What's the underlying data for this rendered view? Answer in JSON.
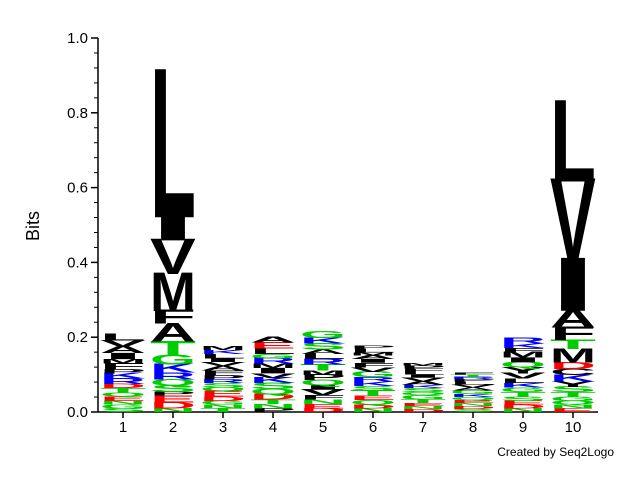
{
  "chart_data": {
    "type": "sequence-logo",
    "ylabel": "Bits",
    "ylim": [
      0,
      1.0
    ],
    "yticks": [
      "0.0",
      "0.2",
      "0.4",
      "0.6",
      "0.8",
      "1.0"
    ],
    "positions": [
      "1",
      "2",
      "3",
      "4",
      "5",
      "6",
      "7",
      "8",
      "9",
      "10"
    ],
    "credit": "Created by Seq2Logo",
    "colors": {
      "hydrophobic": "#000000",
      "polar": "#00cc00",
      "positive": "#0000ff",
      "negative": "#ff0000"
    },
    "residue_groups": {
      "A": "hydrophobic",
      "V": "hydrophobic",
      "L": "hydrophobic",
      "I": "hydrophobic",
      "M": "hydrophobic",
      "F": "hydrophobic",
      "W": "hydrophobic",
      "P": "hydrophobic",
      "Y": "hydrophobic",
      "C": "hydrophobic",
      "G": "polar",
      "S": "polar",
      "T": "polar",
      "N": "polar",
      "Q": "polar",
      "K": "positive",
      "R": "positive",
      "H": "positive",
      "D": "negative",
      "E": "negative"
    },
    "stacks": [
      {
        "position": "1",
        "letters": [
          [
            "S",
            0.01
          ],
          [
            "G",
            0.01
          ],
          [
            "N",
            0.01
          ],
          [
            "E",
            0.012
          ],
          [
            "Q",
            0.01
          ],
          [
            "T",
            0.012
          ],
          [
            "D",
            0.012
          ],
          [
            "R",
            0.014
          ],
          [
            "K",
            0.014
          ],
          [
            "P",
            0.012
          ],
          [
            "F",
            0.014
          ],
          [
            "M",
            0.012
          ],
          [
            "I",
            0.016
          ],
          [
            "A",
            0.018
          ],
          [
            "V",
            0.016
          ],
          [
            "L",
            0.018
          ]
        ]
      },
      {
        "position": "2",
        "letters": [
          [
            "N",
            0.01
          ],
          [
            "D",
            0.016
          ],
          [
            "E",
            0.018
          ],
          [
            "P",
            0.01
          ],
          [
            "S",
            0.018
          ],
          [
            "Q",
            0.016
          ],
          [
            "R",
            0.018
          ],
          [
            "K",
            0.022
          ],
          [
            "G",
            0.026
          ],
          [
            "T",
            0.036
          ],
          [
            "A",
            0.048
          ],
          [
            "F",
            0.036
          ],
          [
            "M",
            0.098
          ],
          [
            "V",
            0.09
          ],
          [
            "I",
            0.074
          ],
          [
            "L",
            0.38
          ]
        ]
      },
      {
        "position": "3",
        "letters": [
          [
            "T",
            0.01
          ],
          [
            "N",
            0.01
          ],
          [
            "G",
            0.01
          ],
          [
            "D",
            0.012
          ],
          [
            "E",
            0.014
          ],
          [
            "Q",
            0.01
          ],
          [
            "S",
            0.012
          ],
          [
            "R",
            0.01
          ],
          [
            "P",
            0.012
          ],
          [
            "F",
            0.012
          ],
          [
            "A",
            0.012
          ],
          [
            "V",
            0.01
          ],
          [
            "I",
            0.01
          ],
          [
            "L",
            0.012
          ],
          [
            "K",
            0.01
          ],
          [
            "M",
            0.01
          ]
        ]
      },
      {
        "position": "4",
        "letters": [
          [
            "P",
            0.01
          ],
          [
            "N",
            0.012
          ],
          [
            "T",
            0.012
          ],
          [
            "D",
            0.014
          ],
          [
            "Q",
            0.014
          ],
          [
            "S",
            0.016
          ],
          [
            "K",
            0.014
          ],
          [
            "V",
            0.012
          ],
          [
            "I",
            0.014
          ],
          [
            "M",
            0.012
          ],
          [
            "R",
            0.014
          ],
          [
            "G",
            0.012
          ],
          [
            "L",
            0.014
          ],
          [
            "E",
            0.016
          ],
          [
            "A",
            0.014
          ]
        ]
      },
      {
        "position": "5",
        "letters": [
          [
            "D",
            0.01
          ],
          [
            "E",
            0.012
          ],
          [
            "N",
            0.012
          ],
          [
            "F",
            0.012
          ],
          [
            "V",
            0.014
          ],
          [
            "I",
            0.012
          ],
          [
            "Q",
            0.014
          ],
          [
            "P",
            0.014
          ],
          [
            "M",
            0.012
          ],
          [
            "T",
            0.016
          ],
          [
            "R",
            0.014
          ],
          [
            "L",
            0.014
          ],
          [
            "A",
            0.012
          ],
          [
            "S",
            0.016
          ],
          [
            "K",
            0.014
          ],
          [
            "G",
            0.018
          ]
        ]
      },
      {
        "position": "6",
        "letters": [
          [
            "N",
            0.01
          ],
          [
            "D",
            0.01
          ],
          [
            "Q",
            0.012
          ],
          [
            "E",
            0.012
          ],
          [
            "T",
            0.014
          ],
          [
            "S",
            0.012
          ],
          [
            "K",
            0.012
          ],
          [
            "R",
            0.012
          ],
          [
            "G",
            0.014
          ],
          [
            "V",
            0.012
          ],
          [
            "F",
            0.012
          ],
          [
            "I",
            0.01
          ],
          [
            "A",
            0.01
          ],
          [
            "M",
            0.008
          ],
          [
            "L",
            0.01
          ],
          [
            "P",
            0.008
          ]
        ]
      },
      {
        "position": "7",
        "letters": [
          [
            "D",
            0.008
          ],
          [
            "N",
            0.008
          ],
          [
            "E",
            0.008
          ],
          [
            "T",
            0.01
          ],
          [
            "G",
            0.012
          ],
          [
            "Q",
            0.008
          ],
          [
            "S",
            0.01
          ],
          [
            "K",
            0.008
          ],
          [
            "A",
            0.01
          ],
          [
            "V",
            0.01
          ],
          [
            "I",
            0.008
          ],
          [
            "L",
            0.008
          ],
          [
            "F",
            0.008
          ],
          [
            "P",
            0.008
          ],
          [
            "M",
            0.006
          ]
        ]
      },
      {
        "position": "8",
        "letters": [
          [
            "S",
            0.008
          ],
          [
            "D",
            0.008
          ],
          [
            "N",
            0.008
          ],
          [
            "E",
            0.008
          ],
          [
            "Q",
            0.008
          ],
          [
            "K",
            0.008
          ],
          [
            "G",
            0.01
          ],
          [
            "A",
            0.008
          ],
          [
            "V",
            0.008
          ],
          [
            "L",
            0.008
          ],
          [
            "P",
            0.006
          ],
          [
            "R",
            0.006
          ],
          [
            "T",
            0.006
          ],
          [
            "F",
            0.004
          ]
        ]
      },
      {
        "position": "9",
        "letters": [
          [
            "N",
            0.01
          ],
          [
            "D",
            0.01
          ],
          [
            "E",
            0.01
          ],
          [
            "S",
            0.012
          ],
          [
            "T",
            0.012
          ],
          [
            "G",
            0.012
          ],
          [
            "K",
            0.012
          ],
          [
            "L",
            0.012
          ],
          [
            "V",
            0.014
          ],
          [
            "Y",
            0.016
          ],
          [
            "Q",
            0.014
          ],
          [
            "I",
            0.012
          ],
          [
            "M",
            0.014
          ],
          [
            "F",
            0.012
          ],
          [
            "K",
            0.012
          ],
          [
            "R",
            0.014
          ]
        ]
      },
      {
        "position": "10",
        "letters": [
          [
            "E",
            0.01
          ],
          [
            "N",
            0.01
          ],
          [
            "Q",
            0.01
          ],
          [
            "G",
            0.012
          ],
          [
            "T",
            0.012
          ],
          [
            "S",
            0.014
          ],
          [
            "Y",
            0.014
          ],
          [
            "K",
            0.018
          ],
          [
            "C",
            0.016
          ],
          [
            "D",
            0.018
          ],
          [
            "M",
            0.036
          ],
          [
            "T",
            0.024
          ],
          [
            "F",
            0.034
          ],
          [
            "A",
            0.048
          ],
          [
            "I",
            0.136
          ],
          [
            "V",
            0.212
          ],
          [
            "L",
            0.208
          ]
        ]
      }
    ]
  }
}
